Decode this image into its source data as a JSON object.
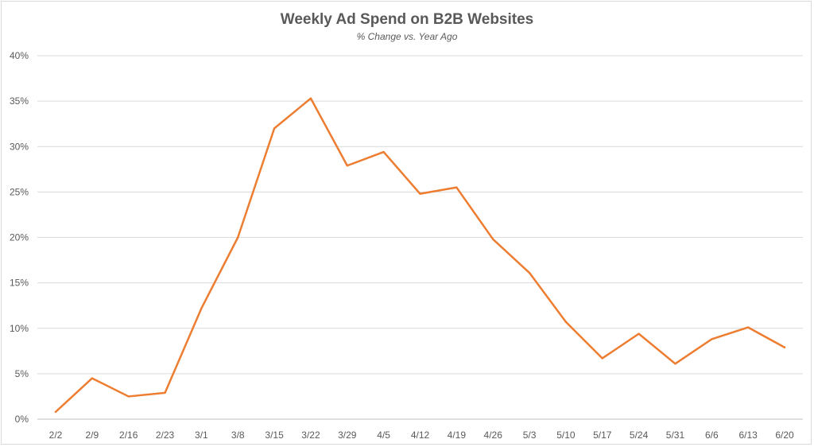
{
  "chart_data": {
    "type": "line",
    "title": "Weekly Ad Spend on B2B Websites",
    "subtitle": "% Change vs. Year Ago",
    "xlabel": "",
    "ylabel": "",
    "categories": [
      "2/2",
      "2/9",
      "2/16",
      "2/23",
      "3/1",
      "3/8",
      "3/15",
      "3/22",
      "3/29",
      "4/5",
      "4/12",
      "4/19",
      "4/26",
      "5/3",
      "5/10",
      "5/17",
      "5/24",
      "5/31",
      "6/6",
      "6/13",
      "6/20"
    ],
    "series": [
      {
        "name": "% Change vs. Year Ago",
        "color": "#ED7D31",
        "values": [
          0.8,
          4.5,
          2.5,
          2.9,
          12.2,
          20.0,
          32.0,
          35.3,
          27.9,
          29.4,
          24.8,
          25.5,
          19.8,
          16.1,
          10.7,
          6.7,
          9.4,
          6.1,
          8.8,
          10.1,
          7.9
        ]
      }
    ],
    "ylim": [
      0,
      40
    ],
    "yticks": [
      "0%",
      "5%",
      "10%",
      "15%",
      "20%",
      "25%",
      "30%",
      "35%",
      "40%"
    ],
    "grid": true,
    "legend": "none"
  }
}
